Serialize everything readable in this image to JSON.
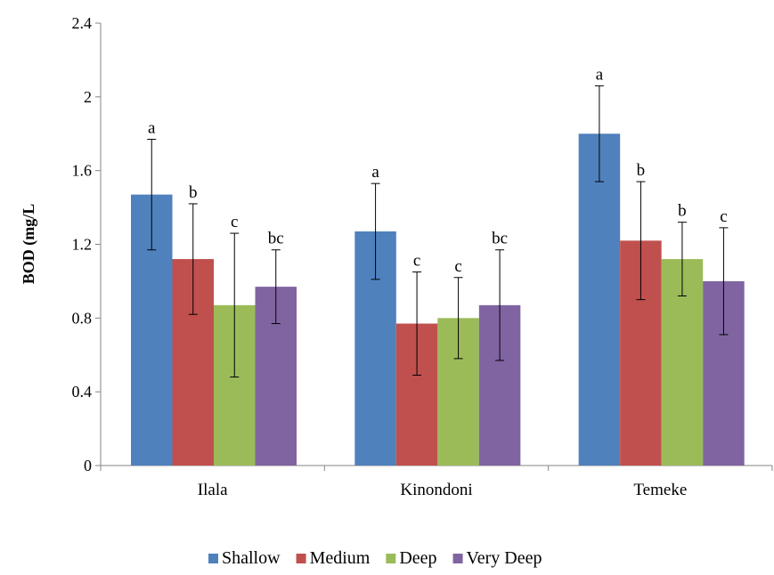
{
  "chart_data": {
    "type": "bar",
    "title": "",
    "xlabel": "",
    "ylabel": "BOD (mg/L",
    "ylim": [
      0,
      2.4
    ],
    "yticks": [
      "0",
      "0.4",
      "0.8",
      "1.2",
      "1.6",
      "2",
      "2.4"
    ],
    "grid": false,
    "legend": "bottom",
    "categories": [
      "Ilala",
      "Kinondoni",
      "Temeke"
    ],
    "series": [
      {
        "name": "Shallow",
        "color": "#4F81BD",
        "values": [
          1.47,
          1.27,
          1.8
        ],
        "errors": [
          0.3,
          0.26,
          0.26
        ],
        "labels": [
          "a",
          "a",
          "a"
        ]
      },
      {
        "name": "Medium",
        "color": "#C0504D",
        "values": [
          1.12,
          0.77,
          1.22
        ],
        "errors": [
          0.3,
          0.28,
          0.32
        ],
        "labels": [
          "b",
          "c",
          "b"
        ]
      },
      {
        "name": "Deep",
        "color": "#9BBB59",
        "values": [
          0.87,
          0.8,
          1.12
        ],
        "errors": [
          0.39,
          0.22,
          0.2
        ],
        "labels": [
          "c",
          "c",
          "b"
        ]
      },
      {
        "name": "Very Deep",
        "color": "#8064A2",
        "values": [
          0.97,
          0.87,
          1.0
        ],
        "errors": [
          0.2,
          0.3,
          0.29
        ],
        "labels": [
          "bc",
          "bc",
          "c"
        ]
      }
    ]
  }
}
